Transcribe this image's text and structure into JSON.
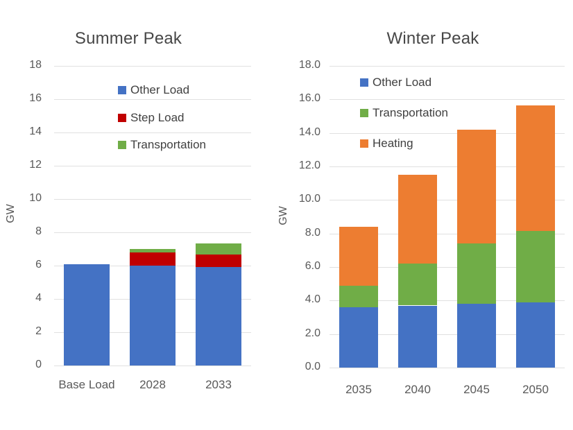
{
  "chart_data": [
    {
      "type": "bar",
      "stacked": true,
      "title": "Summer Peak",
      "ylabel": "GW",
      "categories": [
        "Base Load",
        "2028",
        "2033"
      ],
      "series": [
        {
          "name": "Other Load",
          "color": "#4472C4",
          "values": [
            6.1,
            6.0,
            5.9
          ]
        },
        {
          "name": "Step Load",
          "color": "#C00000",
          "values": [
            0,
            0.8,
            0.8
          ]
        },
        {
          "name": "Transportation",
          "color": "#70AD47",
          "values": [
            0,
            0.2,
            0.65
          ]
        }
      ],
      "totals": [
        6.1,
        7.0,
        7.35
      ],
      "ylim": [
        0,
        18
      ],
      "ytick_step": 2,
      "ytick_decimals": 0,
      "grid": true,
      "legend_position": "upper-center-inside"
    },
    {
      "type": "bar",
      "stacked": true,
      "title": "Winter Peak",
      "ylabel": "GW",
      "categories": [
        "2035",
        "2040",
        "2045",
        "2050"
      ],
      "series": [
        {
          "name": "Other Load",
          "color": "#4472C4",
          "values": [
            3.6,
            3.7,
            3.8,
            3.9
          ]
        },
        {
          "name": "Transportation",
          "color": "#70AD47",
          "values": [
            1.3,
            2.5,
            3.6,
            4.25
          ]
        },
        {
          "name": "Heating",
          "color": "#ED7D31",
          "values": [
            3.5,
            5.3,
            6.8,
            7.5
          ]
        }
      ],
      "totals": [
        8.4,
        11.5,
        14.2,
        15.65
      ],
      "ylim": [
        0,
        18
      ],
      "ytick_step": 2,
      "ytick_decimals": 1,
      "grid": true,
      "legend_position": "upper-center-inside"
    }
  ],
  "colors": {
    "gridline": "#e0e0e0",
    "tick_label": "#595959",
    "title": "#474747",
    "legend_label": "#404040"
  }
}
